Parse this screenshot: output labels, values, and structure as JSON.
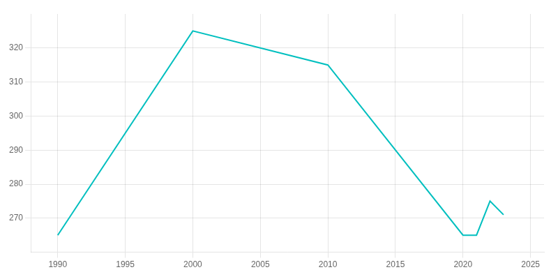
{
  "chart_data": {
    "type": "line",
    "x": [
      1990,
      2000,
      2010,
      2020,
      2021,
      2022,
      2023
    ],
    "values": [
      265,
      325,
      315,
      265,
      265,
      275,
      271
    ],
    "color": "#00BFBF",
    "xlim": [
      1988,
      2026
    ],
    "xticks": [
      1990,
      1995,
      2000,
      2005,
      2010,
      2015,
      2020,
      2025
    ],
    "ylim": [
      260,
      330
    ],
    "yticks": [
      270,
      280,
      290,
      300,
      310,
      320
    ],
    "grid": true
  }
}
